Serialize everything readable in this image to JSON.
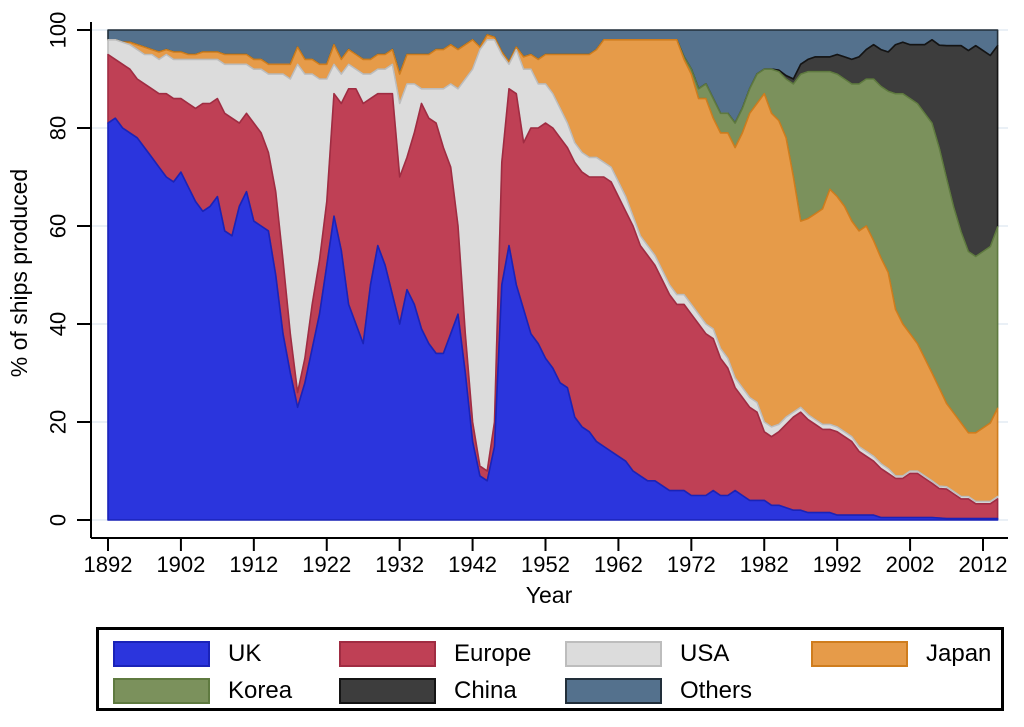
{
  "chart_data": {
    "type": "area",
    "stacked": true,
    "title": "",
    "xlabel": "Year",
    "ylabel": "% of ships produced",
    "x_range": [
      1892,
      2014
    ],
    "x_step": 1,
    "ylim": [
      0,
      100
    ],
    "x_ticks": [
      1892,
      1902,
      1912,
      1922,
      1932,
      1942,
      1952,
      1962,
      1972,
      1982,
      1992,
      2002,
      2012
    ],
    "y_ticks": [
      0,
      20,
      40,
      60,
      80,
      100
    ],
    "grid": "horizontal-faint",
    "legend_position": "bottom-box",
    "series": [
      {
        "name": "UK",
        "color": "#2b35dd",
        "border": "#1a23b8",
        "values": [
          81,
          82,
          80,
          79,
          78,
          76,
          74,
          72,
          70,
          69,
          71,
          68,
          65,
          63,
          64,
          66,
          59,
          58,
          64,
          67,
          61,
          60,
          59,
          50,
          38,
          30,
          23,
          28,
          35,
          42,
          52,
          62,
          55,
          44,
          40,
          36,
          48,
          56,
          52,
          46,
          40,
          47,
          44,
          39,
          36,
          34,
          34,
          38,
          42,
          30,
          16,
          9,
          8,
          15,
          48,
          56,
          48,
          43,
          38,
          36,
          33,
          31,
          28,
          27,
          21,
          19,
          18,
          16,
          15,
          14,
          13,
          12,
          10,
          9,
          8,
          8,
          7,
          6,
          6,
          6,
          5,
          5,
          5,
          6,
          5,
          5,
          6,
          5,
          4,
          4,
          4,
          3,
          3,
          2.5,
          2,
          2,
          1.5,
          1.5,
          1.5,
          1.5,
          1,
          1,
          1,
          1,
          1,
          1,
          0.5,
          0.5,
          0.5,
          0.5,
          0.5,
          0.5,
          0.5,
          0.5,
          0.4,
          0.3,
          0.3,
          0.3,
          0.3,
          0.3,
          0.3,
          0.3,
          0.3
        ]
      },
      {
        "name": "Europe",
        "color": "#bf4055",
        "border": "#a02c42",
        "values": [
          14,
          12,
          13,
          13,
          12,
          13,
          14,
          15,
          17,
          17,
          15,
          17,
          19,
          22,
          21,
          20,
          24,
          24,
          17,
          16,
          20,
          19,
          16,
          17,
          15,
          8,
          3,
          5,
          9,
          11,
          13,
          25,
          30,
          44,
          48,
          49,
          38,
          31,
          35,
          41,
          30,
          27,
          35,
          46,
          46,
          47,
          42,
          34,
          18,
          8,
          4,
          2,
          2,
          5,
          25,
          32,
          39,
          34,
          42,
          44,
          48,
          49,
          50,
          49,
          52,
          52,
          52,
          54,
          55,
          55,
          53,
          51,
          50,
          47,
          46,
          44,
          42,
          40,
          38,
          38,
          37,
          35,
          33,
          31,
          28,
          26,
          21,
          20,
          19,
          18,
          14,
          14,
          15,
          17,
          19,
          20,
          19,
          18,
          17,
          17,
          17,
          16,
          15,
          13,
          12,
          11,
          10,
          9,
          8,
          8,
          9,
          9,
          8,
          7,
          6,
          6,
          5,
          4,
          4,
          3,
          3,
          3,
          4
        ]
      },
      {
        "name": "USA",
        "color": "#dcdcdc",
        "border": "#bdbdbd",
        "values": [
          3,
          4,
          4.5,
          5,
          6,
          6,
          7,
          7,
          8,
          8,
          8,
          9,
          10,
          9,
          9,
          8,
          10,
          11,
          12,
          10,
          11,
          13,
          16,
          24,
          38,
          52,
          67,
          58,
          47,
          37,
          25,
          6,
          6,
          5,
          4,
          6,
          5,
          5,
          5,
          6,
          15,
          15,
          10,
          3,
          6,
          7,
          12,
          17,
          28,
          52,
          72,
          85,
          88,
          78,
          22,
          5,
          9,
          15,
          12,
          9,
          8,
          7,
          6,
          5,
          4,
          4,
          4,
          4,
          3,
          3,
          3,
          3,
          2,
          2,
          2,
          2,
          2,
          2,
          2,
          2,
          2,
          2,
          2,
          2,
          2,
          2,
          2,
          2,
          2,
          2,
          2,
          2,
          1.5,
          1.5,
          1,
          1,
          1,
          1,
          1,
          1,
          1,
          1,
          1,
          1,
          1,
          1,
          1,
          1,
          0.5,
          0.5,
          0.5,
          0.5,
          0.5,
          0.5,
          0.5,
          0.5,
          0.5,
          0.5,
          0.5,
          0.5,
          0.5,
          0.5,
          0.5
        ]
      },
      {
        "name": "Japan",
        "color": "#e69b49",
        "border": "#cf7d1e",
        "values": [
          0,
          0,
          0,
          0.5,
          1,
          1.5,
          1,
          1.5,
          1,
          1.5,
          1.5,
          1,
          1,
          1.5,
          1.5,
          1.5,
          2,
          2,
          2,
          2,
          2,
          2,
          2,
          2,
          2,
          3,
          3.5,
          3,
          3,
          3,
          3,
          4,
          3,
          3,
          3,
          3,
          3,
          3,
          3,
          3,
          6,
          6,
          6,
          7,
          7,
          8,
          8,
          8,
          8,
          7,
          6,
          0.5,
          1,
          0.5,
          0.5,
          0.5,
          0.5,
          2.5,
          3,
          5,
          6,
          8,
          11,
          14,
          18,
          20,
          21,
          22,
          25,
          26,
          29,
          32,
          36,
          40,
          42,
          44,
          47,
          50,
          52,
          48,
          47,
          44,
          46,
          43,
          44,
          46,
          47,
          52,
          58,
          61,
          67,
          64,
          62,
          57,
          48,
          38,
          40,
          42,
          44,
          48,
          47,
          46,
          44,
          44,
          46,
          44,
          42,
          40,
          34,
          31,
          28,
          26,
          24,
          22,
          20,
          17,
          16,
          15,
          13,
          14,
          15,
          16,
          18
        ]
      },
      {
        "name": "Korea",
        "color": "#7b915c",
        "border": "#5f7a40",
        "values": [
          0,
          0,
          0,
          0,
          0,
          0,
          0,
          0,
          0,
          0,
          0,
          0,
          0,
          0,
          0,
          0,
          0,
          0,
          0,
          0,
          0,
          0,
          0,
          0,
          0,
          0,
          0,
          0,
          0,
          0,
          0,
          0,
          0,
          0,
          0,
          0,
          0,
          0,
          0,
          0,
          0,
          0,
          0,
          0,
          0,
          0,
          0,
          0,
          0,
          0,
          0,
          0,
          0,
          0,
          0,
          0,
          0,
          0,
          0,
          0,
          0,
          0,
          0,
          0,
          0,
          0,
          0,
          0,
          0,
          0,
          0,
          0,
          0,
          0,
          0,
          0,
          0,
          0,
          0,
          0.5,
          1,
          2,
          3,
          4,
          4,
          4,
          5,
          5,
          5,
          6,
          5,
          9,
          10,
          12,
          19,
          30,
          30,
          29,
          28,
          24,
          25,
          26,
          28,
          30,
          30,
          33,
          35,
          37,
          44,
          47,
          48,
          49,
          50,
          51,
          49,
          46,
          42,
          39,
          37,
          36,
          36,
          36,
          37
        ]
      },
      {
        "name": "China",
        "color": "#3d3d3d",
        "border": "#141414",
        "values": [
          0,
          0,
          0,
          0,
          0,
          0,
          0,
          0,
          0,
          0,
          0,
          0,
          0,
          0,
          0,
          0,
          0,
          0,
          0,
          0,
          0,
          0,
          0,
          0,
          0,
          0,
          0,
          0,
          0,
          0,
          0,
          0,
          0,
          0,
          0,
          0,
          0,
          0,
          0,
          0,
          0,
          0,
          0,
          0,
          0,
          0,
          0,
          0,
          0,
          0,
          0,
          0,
          0,
          0,
          0,
          0,
          0,
          0,
          0,
          0,
          0,
          0,
          0,
          0,
          0,
          0,
          0,
          0,
          0,
          0,
          0,
          0,
          0,
          0,
          0,
          0,
          0,
          0,
          0,
          0,
          0,
          0,
          0,
          0,
          0,
          0,
          0,
          0,
          0,
          0,
          0,
          0,
          0.3,
          0.7,
          1,
          2,
          2.5,
          3,
          3,
          3,
          4,
          4.5,
          5,
          5.5,
          6,
          7,
          7.5,
          8,
          10,
          10.5,
          11,
          12,
          14,
          17,
          21,
          27,
          33,
          38,
          41,
          43,
          41,
          39,
          37
        ]
      },
      {
        "name": "Others",
        "color": "#54718d",
        "border": "#222f3a",
        "values": [
          2,
          2,
          2.5,
          2.5,
          3,
          3.5,
          4,
          4.5,
          4,
          4.5,
          4.5,
          5,
          5,
          4.5,
          4.5,
          4.5,
          5,
          5,
          5,
          5,
          6,
          6,
          7,
          7,
          7,
          7,
          3.5,
          6,
          6,
          7,
          7,
          3,
          6,
          4,
          5,
          6,
          6,
          5,
          5,
          4,
          9,
          5,
          5,
          5,
          5,
          4,
          4,
          3,
          4,
          3,
          2,
          3.5,
          1,
          1.5,
          4.5,
          6.5,
          3.5,
          5.5,
          5,
          6,
          5,
          5,
          5,
          5,
          5,
          5,
          5,
          4,
          2,
          2,
          2,
          2,
          2,
          2,
          2,
          2,
          2,
          2,
          2,
          5.5,
          8,
          12,
          11,
          14,
          17,
          17,
          19,
          16,
          12,
          9,
          8,
          8,
          8.2,
          9.3,
          10,
          7,
          6,
          5.5,
          5.5,
          5.5,
          5,
          5.5,
          6,
          5.5,
          4,
          3,
          4,
          4.5,
          3,
          2.5,
          3,
          3,
          3,
          2,
          3.1,
          3.2,
          3.2,
          3.2,
          4.2,
          3.2,
          4.2,
          5.2,
          3.2
        ]
      }
    ]
  }
}
